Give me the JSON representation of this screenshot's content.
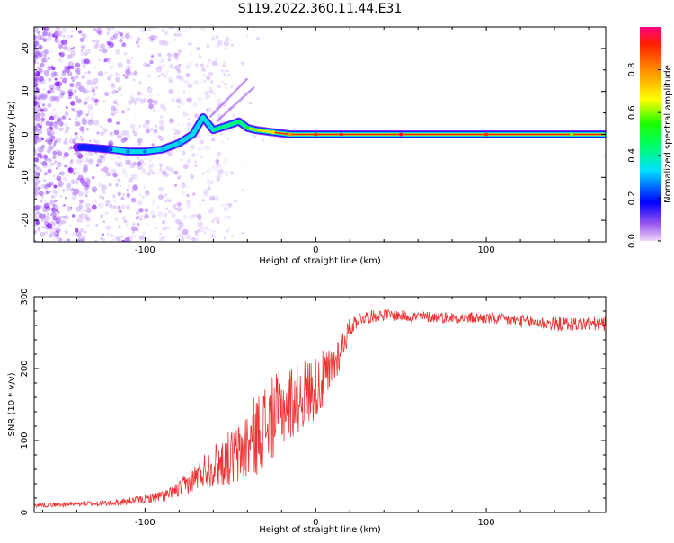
{
  "title": "S119.2022.360.11.44.E31",
  "colors": {
    "snr_line": "#ee3333",
    "ridge": [
      "#ff2020",
      "#ffa500",
      "#00e5e5",
      "#0033ff",
      "#7b00ff"
    ],
    "scatter": "#8a2be2"
  },
  "chart_data": [
    {
      "type": "heatmap",
      "xlabel": "Height of straight line (km)",
      "ylabel": "Frequency (Hz)",
      "xlim": [
        -165,
        170
      ],
      "ylim": [
        -25,
        25
      ],
      "xticks": [
        -100,
        0,
        100
      ],
      "yticks": [
        -20,
        -10,
        0,
        10,
        20
      ],
      "colorbar": {
        "label": "Normalized spectral amplitude",
        "range": [
          0,
          1
        ],
        "ticks": [
          "0.0",
          "0.2",
          "0.4",
          "0.6",
          "0.8"
        ]
      },
      "ridge": {
        "x": [
          -135,
          -120,
          -110,
          -100,
          -90,
          -80,
          -72,
          -66,
          -60,
          -52,
          -45,
          -40,
          -35,
          -25,
          -15,
          0,
          15,
          50,
          100,
          150,
          170
        ],
        "freq": [
          -3,
          -3.5,
          -4,
          -4,
          -3.5,
          -2,
          0,
          4,
          1,
          2,
          3,
          1.5,
          1,
          0.5,
          0,
          0,
          0,
          0,
          0,
          0,
          0
        ],
        "amplitude": [
          0.2,
          0.2,
          0.25,
          0.25,
          0.3,
          0.3,
          0.35,
          0.35,
          0.4,
          0.4,
          0.45,
          0.55,
          0.6,
          0.7,
          0.8,
          0.9,
          0.95,
          0.95,
          0.9,
          0.6,
          0.5
        ]
      }
    },
    {
      "type": "line",
      "xlabel": "Height of straight line (km)",
      "ylabel": "SNR (10 * v/v)",
      "xlim": [
        -165,
        170
      ],
      "ylim": [
        0,
        300
      ],
      "xticks": [
        -100,
        0,
        100
      ],
      "yticks": [
        0,
        100,
        200,
        300
      ],
      "series": [
        {
          "envelope_x": [
            -165,
            -120,
            -100,
            -85,
            -75,
            -65,
            -55,
            -45,
            -38,
            -30,
            -20,
            -10,
            0,
            8,
            15,
            20,
            25,
            40,
            60,
            100,
            140,
            170
          ],
          "envelope_y": [
            10,
            13,
            18,
            25,
            40,
            60,
            70,
            80,
            100,
            120,
            145,
            160,
            175,
            190,
            230,
            255,
            270,
            275,
            272,
            270,
            262,
            262
          ],
          "noise": [
            3,
            4,
            6,
            10,
            15,
            25,
            35,
            45,
            55,
            60,
            55,
            50,
            45,
            40,
            25,
            15,
            10,
            8,
            8,
            8,
            10,
            10
          ]
        }
      ]
    }
  ]
}
